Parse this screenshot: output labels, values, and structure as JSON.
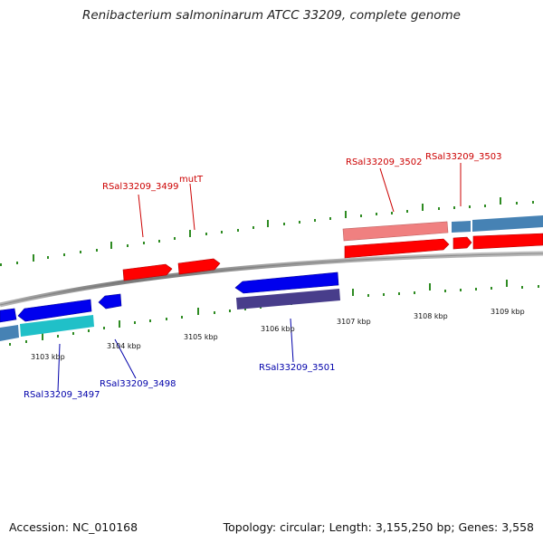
{
  "title": "Renibacterium salmoninarum ATCC 33209, complete genome",
  "footer": {
    "accession": "Accession: NC_010168",
    "summary": "Topology: circular; Length: 3,155,250 bp; Genes: 3,558"
  },
  "colors": {
    "forward_cds": "#ff0000",
    "forward_light": "#f08080",
    "reverse_cds": "#0000ee",
    "reverse_dark": "#483d8b",
    "cyan_gene": "#20c0c8",
    "steelblue_gene": "#4682b4",
    "tick": "#2e8b22",
    "backbone": "#888888",
    "label_forward": "#cc0000",
    "label_reverse": "#0000aa"
  },
  "ruler": {
    "labels": [
      "3103 kbp",
      "3104 kbp",
      "3105 kbp",
      "3106 kbp",
      "3107 kbp",
      "3108 kbp",
      "3109 kbp"
    ]
  },
  "genes": {
    "forward": [
      {
        "id": "f1",
        "label": "RSal33209_3499",
        "color": "forward_cds"
      },
      {
        "id": "f2",
        "label": "mutT",
        "color": "forward_cds"
      },
      {
        "id": "f3",
        "label": "RSal33209_3502",
        "color": "forward_light"
      },
      {
        "id": "f4",
        "label": "RSal33209_3503",
        "color": "forward_cds"
      }
    ],
    "reverse": [
      {
        "id": "r1",
        "label": "RSal33209_3497",
        "color": "reverse_cds"
      },
      {
        "id": "r2",
        "label": "RSal33209_3498",
        "color": "reverse_cds"
      },
      {
        "id": "r3",
        "label": "RSal33209_3501",
        "color": "reverse_cds"
      }
    ]
  }
}
